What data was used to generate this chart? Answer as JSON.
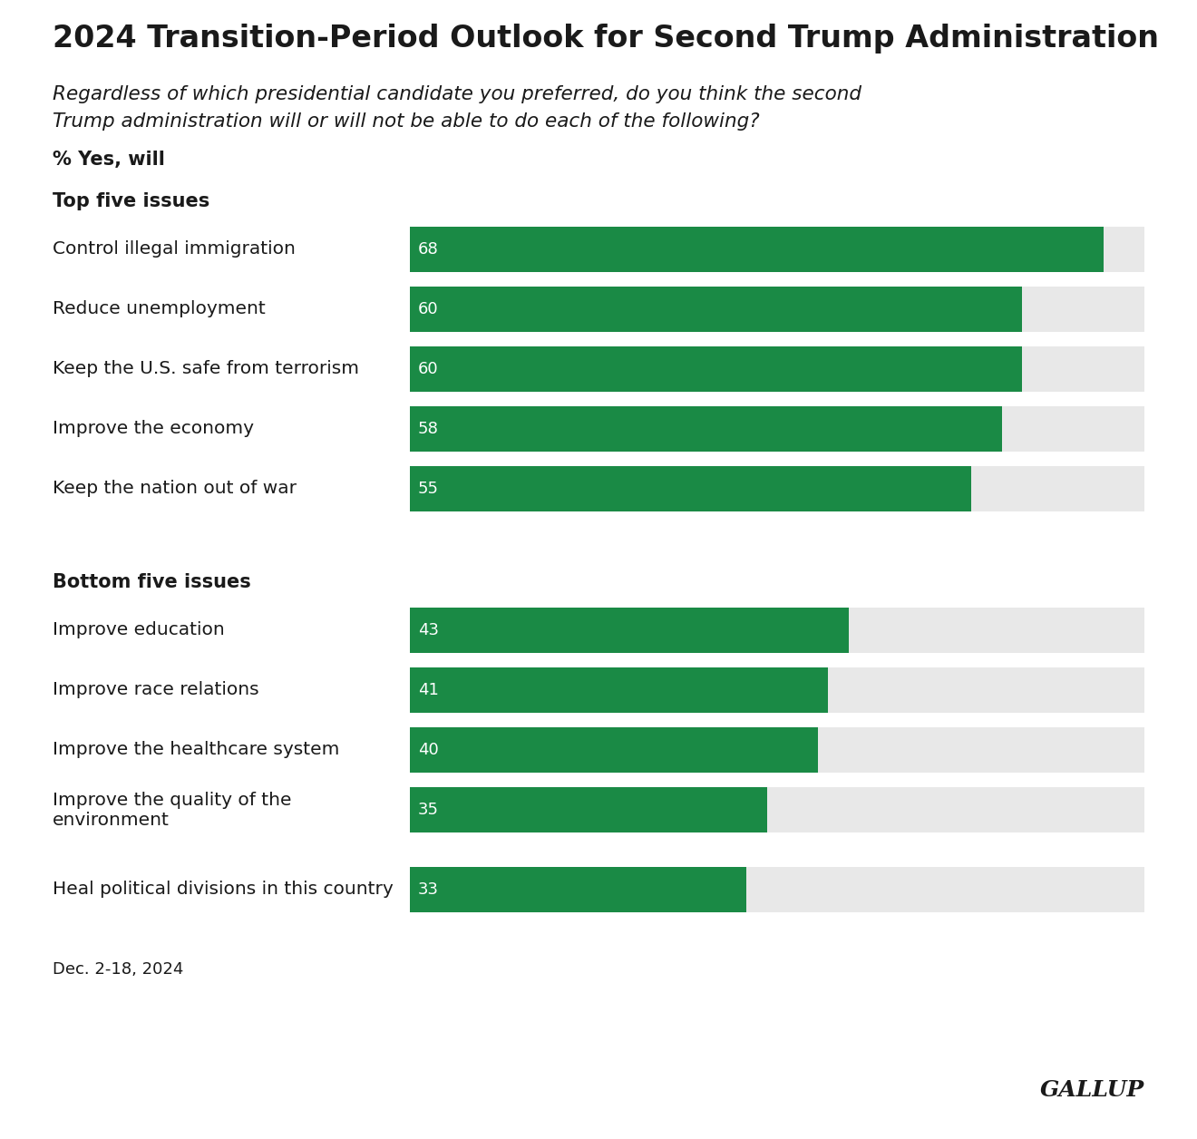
{
  "title": "2024 Transition-Period Outlook for Second Trump Administration",
  "subtitle_line1": "Regardless of which presidential candidate you preferred, do you think the second",
  "subtitle_line2": "Trump administration will or will not be able to do each of the following?",
  "ylabel_label": "% Yes, will",
  "top_section_label": "Top five issues",
  "bottom_section_label": "Bottom five issues",
  "top_categories": [
    "Control illegal immigration",
    "Reduce unemployment",
    "Keep the U.S. safe from terrorism",
    "Improve the economy",
    "Keep the nation out of war"
  ],
  "top_values": [
    68,
    60,
    60,
    58,
    55
  ],
  "bottom_categories": [
    "Improve education",
    "Improve race relations",
    "Improve the healthcare system",
    "Improve the quality of the\nenvironment",
    "Heal political divisions in this country"
  ],
  "bottom_values": [
    43,
    41,
    40,
    35,
    33
  ],
  "bar_color": "#1a8a45",
  "bg_bar_color": "#e8e8e8",
  "bar_max": 72,
  "background_color": "#ffffff",
  "label_color": "#ffffff",
  "text_color": "#1a1a1a",
  "date_text": "Dec. 2-18, 2024",
  "gallup_text": "GALLUP",
  "title_fontsize": 24,
  "subtitle_fontsize": 15.5,
  "ylabel_fontsize": 15,
  "section_fontsize": 15,
  "category_fontsize": 14.5,
  "value_fontsize": 13,
  "date_fontsize": 13,
  "gallup_fontsize": 18
}
